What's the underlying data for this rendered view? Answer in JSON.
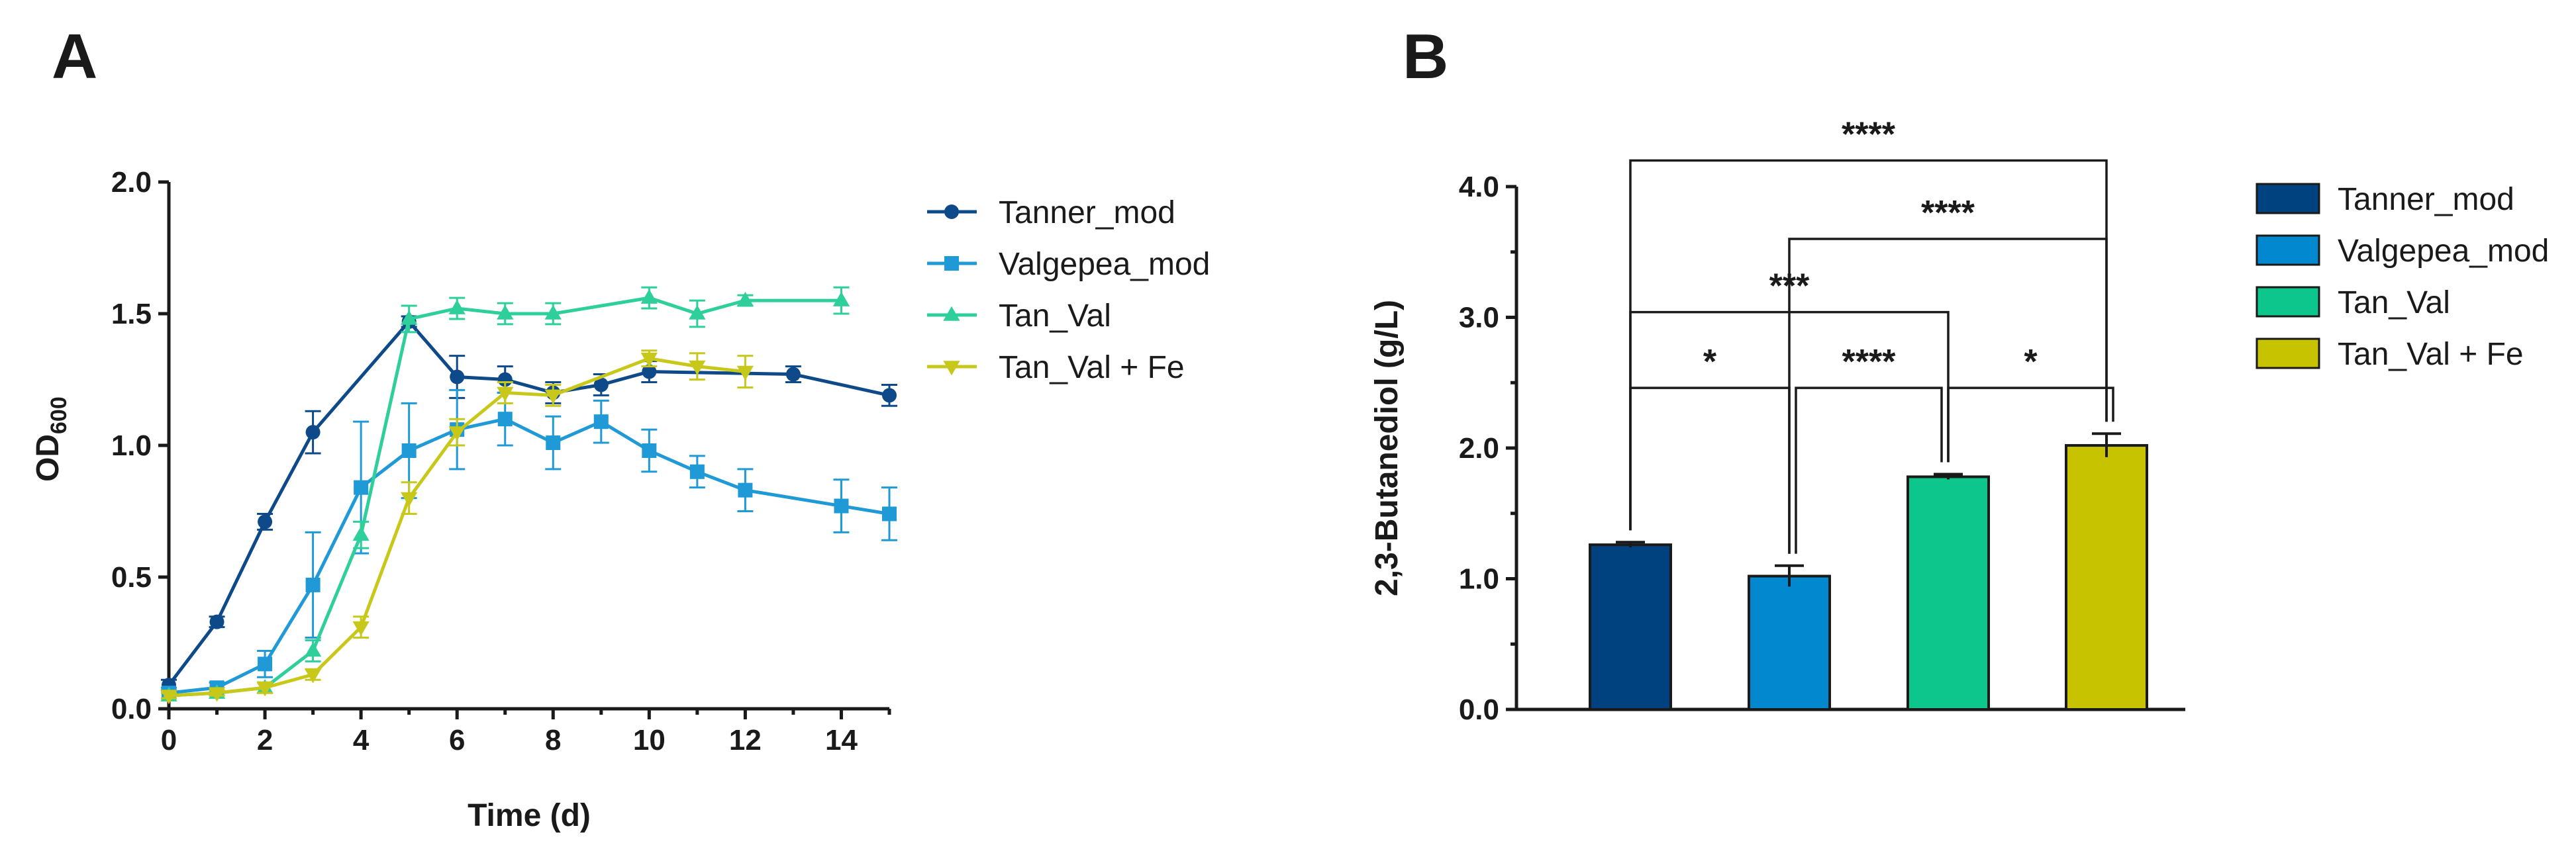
{
  "chart_data": [
    {
      "panel": "A",
      "type": "line",
      "xlabel": "Time (d)",
      "ylabel": "OD",
      "ylabel_sub": "600",
      "xlim": [
        0,
        15
      ],
      "ylim": [
        0,
        2.0
      ],
      "xticks": [
        "0",
        "2",
        "4",
        "6",
        "8",
        "10",
        "12",
        "14"
      ],
      "xtick_values": [
        0,
        2,
        4,
        6,
        8,
        10,
        12,
        14
      ],
      "yticks": [
        "0.0",
        "0.5",
        "1.0",
        "1.5",
        "2.0"
      ],
      "ytick_values": [
        0,
        0.5,
        1.0,
        1.5,
        2.0
      ],
      "legend_position": "right",
      "series": [
        {
          "name": "Tanner_mod",
          "color": "#0e4a8a",
          "marker": "circle",
          "x": [
            0,
            1,
            2,
            3,
            5,
            6,
            7,
            8,
            9,
            10,
            13,
            15
          ],
          "y": [
            0.09,
            0.33,
            0.71,
            1.05,
            1.47,
            1.26,
            1.25,
            1.2,
            1.23,
            1.28,
            1.27,
            1.19
          ],
          "err": [
            0.02,
            0.02,
            0.03,
            0.08,
            0.02,
            0.08,
            0.05,
            0.04,
            0.04,
            0.04,
            0.03,
            0.04
          ]
        },
        {
          "name": "Valgepea_mod",
          "color": "#1f9ad6",
          "marker": "square",
          "x": [
            0,
            1,
            2,
            3,
            4,
            5,
            6,
            7,
            8,
            9,
            10,
            11,
            12,
            14,
            15
          ],
          "y": [
            0.06,
            0.08,
            0.17,
            0.47,
            0.84,
            0.98,
            1.06,
            1.1,
            1.01,
            1.09,
            0.98,
            0.9,
            0.83,
            0.77,
            0.74
          ],
          "err": [
            0.02,
            0.02,
            0.05,
            0.2,
            0.25,
            0.18,
            0.15,
            0.1,
            0.1,
            0.08,
            0.08,
            0.06,
            0.08,
            0.1,
            0.1
          ]
        },
        {
          "name": "Tan_Val",
          "color": "#2ecf9a",
          "marker": "triangle-up",
          "x": [
            0,
            1,
            2,
            3,
            4,
            5,
            6,
            7,
            8,
            10,
            11,
            12,
            14
          ],
          "y": [
            0.05,
            0.06,
            0.08,
            0.22,
            0.66,
            1.48,
            1.52,
            1.5,
            1.5,
            1.56,
            1.5,
            1.55,
            1.55
          ],
          "err": [
            0.01,
            0.01,
            0.02,
            0.04,
            0.05,
            0.05,
            0.04,
            0.04,
            0.04,
            0.04,
            0.05,
            0.02,
            0.05
          ]
        },
        {
          "name": "Tan_Val + Fe",
          "color": "#c8c81a",
          "marker": "triangle-down",
          "x": [
            0,
            1,
            2,
            3,
            4,
            5,
            6,
            7,
            8,
            10,
            11,
            12
          ],
          "y": [
            0.05,
            0.06,
            0.08,
            0.13,
            0.31,
            0.8,
            1.05,
            1.2,
            1.19,
            1.33,
            1.3,
            1.28
          ],
          "err": [
            0.01,
            0.01,
            0.02,
            0.02,
            0.04,
            0.06,
            0.05,
            0.04,
            0.04,
            0.03,
            0.05,
            0.06
          ]
        }
      ]
    },
    {
      "panel": "B",
      "type": "bar",
      "ylabel": "2,3-Butanediol (g/L)",
      "ylim": [
        0,
        4.0
      ],
      "yticks": [
        "0.0",
        "1.0",
        "2.0",
        "3.0",
        "4.0"
      ],
      "ytick_values": [
        0,
        1.0,
        2.0,
        3.0,
        4.0
      ],
      "categories": [
        "Tanner_mod",
        "Valgepea_mod",
        "Tan_Val",
        "Tan_Val + Fe"
      ],
      "values": [
        1.26,
        1.02,
        1.78,
        2.02
      ],
      "errors": [
        0.02,
        0.08,
        0.02,
        0.09
      ],
      "colors": [
        "#00417f",
        "#0288cf",
        "#0dc68b",
        "#c8c300"
      ],
      "legend_position": "right",
      "significance": [
        {
          "from": 0,
          "to": 1,
          "label": "*",
          "y": 2.46
        },
        {
          "from": 1,
          "to": 2,
          "label": "****",
          "y": 2.46
        },
        {
          "from": 2,
          "to": 3,
          "label": "*",
          "y": 2.46
        },
        {
          "from": 0,
          "to": 2,
          "label": "***",
          "y": 3.04
        },
        {
          "from": 1,
          "to": 3,
          "label": "****",
          "y": 3.6
        },
        {
          "from": 0,
          "to": 3,
          "label": "****",
          "y": 4.2
        }
      ]
    }
  ]
}
